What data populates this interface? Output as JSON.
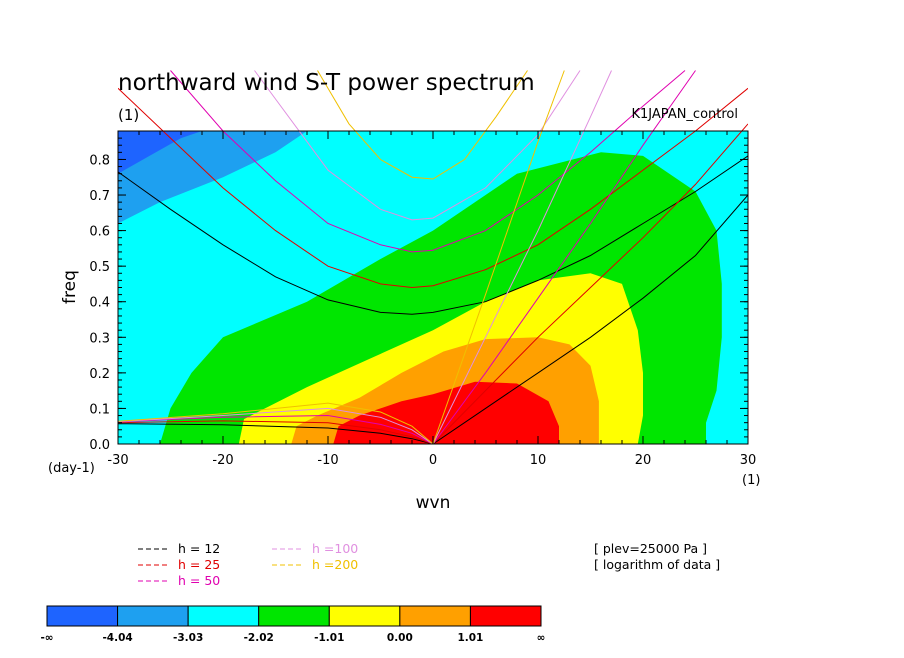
{
  "chart_data": {
    "type": "heatmap",
    "title": "northward wind S-T power spectrum",
    "subtitle": "(1)",
    "label_right": "K1JAPAN_control",
    "xlabel": "wvn",
    "ylabel": "freq",
    "x_unit": "(1)",
    "y_unit": "(day-1)",
    "xlim": [
      -30,
      30
    ],
    "ylim": [
      0,
      0.88
    ],
    "xticks": [
      -30,
      -20,
      -10,
      0,
      10,
      20,
      30
    ],
    "yticks": [
      0.0,
      0.1,
      0.2,
      0.3,
      0.4,
      0.5,
      0.6,
      0.7,
      0.8
    ],
    "xtick_labels": [
      "-30",
      "-20",
      "-10",
      "0",
      "10",
      "20",
      "30"
    ],
    "ytick_labels": [
      "0.0",
      "0.1",
      "0.2",
      "0.3",
      "0.4",
      "0.5",
      "0.6",
      "0.7",
      "0.8"
    ],
    "color_levels": [
      "-∞",
      "-4.04",
      "-3.03",
      "-2.02",
      "-1.01",
      "0.00",
      "1.01",
      "∞"
    ],
    "color_fills": [
      "#1e64ff",
      "#1ea0f0",
      "#00ffff",
      "#00e600",
      "#ffff00",
      "#ffa000",
      "#ff0000"
    ],
    "contour_regions": [
      {
        "level": "-3.03",
        "color": "#00ffff",
        "boundary": [
          [
            -30,
            0.62
          ],
          [
            -26,
            0.68
          ],
          [
            -20,
            0.75
          ],
          [
            -15,
            0.82
          ],
          [
            -12,
            0.88
          ],
          [
            30,
            0.88
          ],
          [
            30,
            0
          ],
          [
            -30,
            0
          ]
        ]
      },
      {
        "level": "-4.04",
        "color": "#1e64ff",
        "boundary": [
          [
            -30,
            0.76
          ],
          [
            -27,
            0.81
          ],
          [
            -24,
            0.86
          ],
          [
            -22,
            0.88
          ],
          [
            -30,
            0.88
          ]
        ]
      },
      {
        "level": "-2.02",
        "color": "#00e600",
        "boundary": [
          [
            -26,
            0
          ],
          [
            -25,
            0.1
          ],
          [
            -23,
            0.2
          ],
          [
            -20,
            0.3
          ],
          [
            -12,
            0.4
          ],
          [
            -5,
            0.52
          ],
          [
            0,
            0.6
          ],
          [
            8,
            0.76
          ],
          [
            16,
            0.82
          ],
          [
            20,
            0.81
          ],
          [
            25,
            0.71
          ],
          [
            27,
            0.6
          ],
          [
            27.5,
            0.45
          ],
          [
            27.5,
            0.3
          ],
          [
            27,
            0.15
          ],
          [
            26,
            0.06
          ],
          [
            26,
            0
          ]
        ]
      },
      {
        "level": "-1.01",
        "color": "#ffff00",
        "boundary": [
          [
            -18.5,
            0
          ],
          [
            -18,
            0.07
          ],
          [
            -16,
            0.1
          ],
          [
            -12,
            0.16
          ],
          [
            -6,
            0.24
          ],
          [
            0,
            0.32
          ],
          [
            5,
            0.4
          ],
          [
            10,
            0.46
          ],
          [
            15,
            0.48
          ],
          [
            18,
            0.45
          ],
          [
            19.5,
            0.32
          ],
          [
            20,
            0.2
          ],
          [
            20,
            0.08
          ],
          [
            19.5,
            0
          ]
        ]
      },
      {
        "level": "0.00",
        "color": "#ffa000",
        "boundary": [
          [
            -13.5,
            0
          ],
          [
            -13,
            0.05
          ],
          [
            -11,
            0.08
          ],
          [
            -7,
            0.13
          ],
          [
            -3,
            0.2
          ],
          [
            1,
            0.26
          ],
          [
            5,
            0.295
          ],
          [
            10,
            0.3
          ],
          [
            13,
            0.28
          ],
          [
            15,
            0.22
          ],
          [
            15.8,
            0.12
          ],
          [
            15.8,
            0
          ]
        ]
      },
      {
        "level": "1.01",
        "color": "#ff0000",
        "boundary": [
          [
            -9.5,
            0
          ],
          [
            -9,
            0.05
          ],
          [
            -7,
            0.08
          ],
          [
            -3,
            0.12
          ],
          [
            0,
            0.14
          ],
          [
            4,
            0.175
          ],
          [
            8,
            0.17
          ],
          [
            11,
            0.12
          ],
          [
            12,
            0.05
          ],
          [
            12,
            0
          ]
        ]
      }
    ],
    "dispersion_lines": [
      {
        "label": "h = 12",
        "color": "#000000",
        "curves": [
          [
            [
              -30,
              0.765
            ],
            [
              -25,
              0.66
            ],
            [
              -20,
              0.56
            ],
            [
              -15,
              0.47
            ],
            [
              -10,
              0.405
            ],
            [
              -5,
              0.37
            ],
            [
              -2,
              0.365
            ],
            [
              0,
              0.37
            ],
            [
              5,
              0.4
            ],
            [
              10,
              0.46
            ],
            [
              15,
              0.53
            ],
            [
              20,
              0.62
            ],
            [
              25,
              0.71
            ],
            [
              30,
              0.81
            ]
          ],
          [
            [
              0,
              0
            ],
            [
              5,
              0.1
            ],
            [
              10,
              0.2
            ],
            [
              15,
              0.3
            ],
            [
              20,
              0.41
            ],
            [
              25,
              0.53
            ],
            [
              30,
              0.7
            ]
          ],
          [
            [
              -30,
              0.057
            ],
            [
              -20,
              0.054
            ],
            [
              -10,
              0.045
            ],
            [
              -5,
              0.03
            ],
            [
              -2,
              0.015
            ],
            [
              0,
              0
            ]
          ]
        ]
      },
      {
        "label": "h = 25",
        "color": "#e00000",
        "curves": [
          [
            [
              -30,
              1.0
            ],
            [
              -25,
              0.86
            ],
            [
              -20,
              0.72
            ],
            [
              -15,
              0.6
            ],
            [
              -10,
              0.5
            ],
            [
              -5,
              0.45
            ],
            [
              -2,
              0.44
            ],
            [
              0,
              0.445
            ],
            [
              5,
              0.49
            ],
            [
              10,
              0.56
            ],
            [
              15,
              0.66
            ],
            [
              20,
              0.77
            ],
            [
              25,
              0.88
            ],
            [
              30,
              1.0
            ]
          ],
          [
            [
              0,
              0
            ],
            [
              5,
              0.15
            ],
            [
              10,
              0.3
            ],
            [
              15,
              0.44
            ],
            [
              20,
              0.58
            ],
            [
              25,
              0.73
            ],
            [
              30,
              0.9
            ]
          ],
          [
            [
              -30,
              0.06
            ],
            [
              -20,
              0.065
            ],
            [
              -10,
              0.06
            ],
            [
              -5,
              0.04
            ],
            [
              -2,
              0.02
            ],
            [
              0,
              0
            ]
          ]
        ]
      },
      {
        "label": "h = 50",
        "color": "#e000b0",
        "curves": [
          [
            [
              -25,
              1.05
            ],
            [
              -20,
              0.88
            ],
            [
              -15,
              0.74
            ],
            [
              -10,
              0.62
            ],
            [
              -5,
              0.56
            ],
            [
              -2,
              0.54
            ],
            [
              0,
              0.545
            ],
            [
              5,
              0.6
            ],
            [
              10,
              0.7
            ],
            [
              15,
              0.82
            ],
            [
              20,
              0.95
            ],
            [
              24,
              1.05
            ]
          ],
          [
            [
              0,
              0
            ],
            [
              5,
              0.2
            ],
            [
              10,
              0.41
            ],
            [
              15,
              0.62
            ],
            [
              20,
              0.84
            ],
            [
              25,
              1.05
            ]
          ],
          [
            [
              -30,
              0.062
            ],
            [
              -20,
              0.075
            ],
            [
              -10,
              0.08
            ],
            [
              -5,
              0.055
            ],
            [
              -2,
              0.03
            ],
            [
              0,
              0
            ]
          ]
        ]
      },
      {
        "label": "h =100",
        "color": "#e090e0",
        "curves": [
          [
            [
              -17,
              1.05
            ],
            [
              -15,
              0.97
            ],
            [
              -10,
              0.77
            ],
            [
              -5,
              0.66
            ],
            [
              -2,
              0.63
            ],
            [
              0,
              0.635
            ],
            [
              5,
              0.72
            ],
            [
              10,
              0.87
            ],
            [
              14,
              1.05
            ]
          ],
          [
            [
              0,
              0
            ],
            [
              5,
              0.3
            ],
            [
              10,
              0.6
            ],
            [
              15,
              0.92
            ],
            [
              17,
              1.05
            ]
          ],
          [
            [
              -30,
              0.063
            ],
            [
              -20,
              0.08
            ],
            [
              -10,
              0.1
            ],
            [
              -5,
              0.075
            ],
            [
              -2,
              0.04
            ],
            [
              0,
              0
            ]
          ]
        ]
      },
      {
        "label": "h =200",
        "color": "#f0c000",
        "curves": [
          [
            [
              -11,
              1.05
            ],
            [
              -8,
              0.9
            ],
            [
              -5,
              0.8
            ],
            [
              -2,
              0.75
            ],
            [
              0,
              0.745
            ],
            [
              3,
              0.8
            ],
            [
              6,
              0.92
            ],
            [
              9,
              1.05
            ]
          ],
          [
            [
              0,
              0
            ],
            [
              5,
              0.42
            ],
            [
              10,
              0.85
            ],
            [
              12.5,
              1.05
            ]
          ],
          [
            [
              -30,
              0.064
            ],
            [
              -20,
              0.085
            ],
            [
              -10,
              0.115
            ],
            [
              -5,
              0.09
            ],
            [
              -2,
              0.05
            ],
            [
              0,
              0
            ]
          ]
        ]
      }
    ],
    "notes": [
      "[ plev=25000 Pa ]",
      "[ logarithm of data ]"
    ]
  }
}
